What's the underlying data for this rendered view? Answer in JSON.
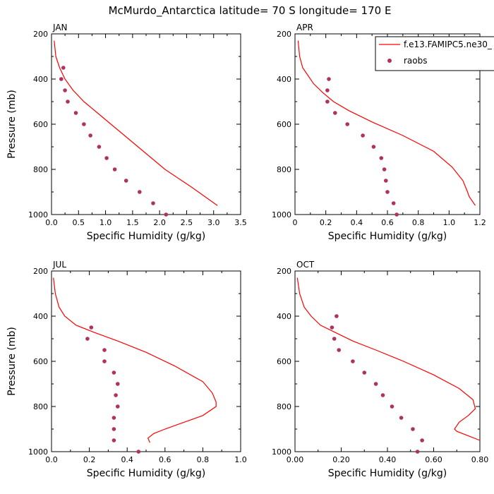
{
  "title": "McMurdo_Antarctica  latitude= 70 S longitude= 170 E",
  "legend": {
    "model_label": "f.e13.FAMIPC5.ne30_",
    "obs_label": "raobs",
    "model_color": "#ff0000",
    "obs_color": "#b03060"
  },
  "chart_data": [
    {
      "type": "line",
      "panel": "JAN",
      "xlabel": "Specific Humidity (g/kg)",
      "ylabel": "Pressure (mb)",
      "xlim": [
        0,
        3.5
      ],
      "ylim": [
        200,
        1000
      ],
      "y_inverted": true,
      "xticks": [
        "0.0",
        "0.5",
        "1.0",
        "1.5",
        "2.0",
        "2.5",
        "3.0",
        "3.5"
      ],
      "yticks": [
        "200",
        "400",
        "600",
        "800",
        "1000"
      ],
      "series": [
        {
          "name": "f.e13.FAMIPC5.ne30_",
          "kind": "line",
          "x": [
            0.05,
            0.08,
            0.15,
            0.25,
            0.4,
            0.6,
            0.85,
            1.1,
            1.35,
            1.6,
            1.85,
            2.1,
            2.6,
            3.07
          ],
          "y": [
            230,
            300,
            350,
            400,
            450,
            500,
            550,
            600,
            650,
            700,
            750,
            800,
            880,
            960
          ]
        },
        {
          "name": "raobs",
          "kind": "scatter",
          "x": [
            0.22,
            0.18,
            0.25,
            0.3,
            0.45,
            0.6,
            0.72,
            0.88,
            1.02,
            1.17,
            1.38,
            1.63,
            1.88,
            2.12
          ],
          "y": [
            350,
            400,
            450,
            500,
            550,
            600,
            650,
            700,
            750,
            800,
            850,
            900,
            950,
            1000
          ]
        }
      ]
    },
    {
      "type": "line",
      "panel": "APR",
      "xlabel": "Specific Humidity (g/kg)",
      "ylabel": "",
      "xlim": [
        0,
        1.2
      ],
      "ylim": [
        200,
        1000
      ],
      "y_inverted": true,
      "xticks": [
        "0",
        "0.2",
        "0.4",
        "0.6",
        "0.8",
        "1.0",
        "1.2"
      ],
      "yticks": [
        "200",
        "400",
        "600",
        "800",
        "1000"
      ],
      "series": [
        {
          "name": "f.e13.FAMIPC5.ne30_",
          "kind": "line",
          "x": [
            0.02,
            0.03,
            0.05,
            0.08,
            0.12,
            0.18,
            0.25,
            0.35,
            0.5,
            0.7,
            0.9,
            1.02,
            1.09,
            1.12,
            1.13,
            1.17
          ],
          "y": [
            230,
            300,
            350,
            380,
            420,
            460,
            500,
            540,
            590,
            650,
            720,
            790,
            850,
            900,
            920,
            960
          ]
        },
        {
          "name": "raobs",
          "kind": "scatter",
          "x": [
            0.22,
            0.21,
            0.21,
            0.26,
            0.34,
            0.44,
            0.51,
            0.56,
            0.58,
            0.59,
            0.6,
            0.64,
            0.66
          ],
          "y": [
            400,
            450,
            500,
            550,
            600,
            650,
            700,
            750,
            800,
            850,
            900,
            950,
            1000
          ]
        }
      ]
    },
    {
      "type": "line",
      "panel": "JUL",
      "xlabel": "Specific Humidity (g/kg)",
      "ylabel": "Pressure (mb)",
      "xlim": [
        0,
        1.0
      ],
      "ylim": [
        200,
        1000
      ],
      "y_inverted": true,
      "xticks": [
        "0.0",
        "0.2",
        "0.4",
        "0.6",
        "0.8",
        "1.0"
      ],
      "yticks": [
        "200",
        "400",
        "600",
        "800",
        "1000"
      ],
      "series": [
        {
          "name": "f.e13.FAMIPC5.ne30_",
          "kind": "line",
          "x": [
            0.01,
            0.02,
            0.04,
            0.07,
            0.13,
            0.22,
            0.35,
            0.5,
            0.65,
            0.8,
            0.85,
            0.87,
            0.87,
            0.8,
            0.7,
            0.6,
            0.54,
            0.51,
            0.52
          ],
          "y": [
            230,
            300,
            360,
            400,
            440,
            470,
            510,
            560,
            620,
            690,
            740,
            780,
            800,
            840,
            870,
            900,
            920,
            940,
            960
          ]
        },
        {
          "name": "raobs",
          "kind": "scatter",
          "x": [
            0.21,
            0.19,
            0.28,
            0.28,
            0.33,
            0.35,
            0.34,
            0.35,
            0.33,
            0.33,
            0.33,
            0.46
          ],
          "y": [
            450,
            500,
            550,
            600,
            650,
            700,
            750,
            800,
            850,
            900,
            950,
            1000
          ]
        }
      ]
    },
    {
      "type": "line",
      "panel": "OCT",
      "xlabel": "Specific Humidity (g/kg)",
      "ylabel": "",
      "xlim": [
        0,
        0.8
      ],
      "ylim": [
        200,
        1000
      ],
      "y_inverted": true,
      "xticks": [
        "0.00",
        "0.20",
        "0.40",
        "0.60",
        "0.80"
      ],
      "yticks": [
        "200",
        "400",
        "600",
        "800",
        "1000"
      ],
      "series": [
        {
          "name": "f.e13.FAMIPC5.ne30_",
          "kind": "line",
          "x": [
            0.01,
            0.02,
            0.04,
            0.07,
            0.11,
            0.17,
            0.25,
            0.35,
            0.47,
            0.6,
            0.71,
            0.77,
            0.78,
            0.75,
            0.71,
            0.69,
            0.7,
            0.75,
            0.8
          ],
          "y": [
            230,
            300,
            360,
            400,
            440,
            470,
            510,
            550,
            600,
            660,
            720,
            770,
            810,
            840,
            870,
            900,
            910,
            930,
            950
          ]
        },
        {
          "name": "raobs",
          "kind": "scatter",
          "x": [
            0.18,
            0.16,
            0.17,
            0.19,
            0.25,
            0.3,
            0.35,
            0.38,
            0.42,
            0.46,
            0.51,
            0.55,
            0.53
          ],
          "y": [
            400,
            450,
            500,
            550,
            600,
            650,
            700,
            750,
            800,
            850,
            900,
            950,
            1000
          ]
        }
      ]
    }
  ]
}
